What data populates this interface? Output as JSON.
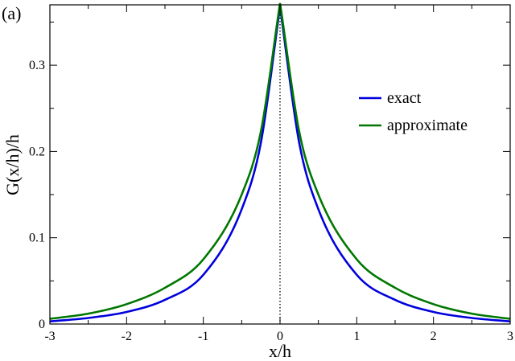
{
  "panel_label": "(a)",
  "chart_data": {
    "type": "line",
    "title": "",
    "xlabel": "x/h",
    "ylabel": "G(x/h)/h",
    "xlim": [
      -3,
      3
    ],
    "ylim": [
      0,
      0.37
    ],
    "x_ticks": [
      -3,
      -2,
      -1,
      0,
      1,
      2,
      3
    ],
    "x_tick_labels": [
      "-3",
      "-2",
      "-1",
      "0",
      "1",
      "2",
      "3"
    ],
    "y_ticks": [
      0,
      0.1,
      0.2,
      0.3
    ],
    "y_tick_labels": [
      "0",
      "0.1",
      "0.2",
      "0.3"
    ],
    "grid": false,
    "legend_position": "top-right",
    "reference_line": {
      "x": 0,
      "style": "dotted",
      "color": "#000000"
    },
    "x": [
      -3,
      -2.5,
      -2,
      -1.5,
      -1,
      -0.5,
      -0.25,
      0,
      0.25,
      0.5,
      1,
      1.5,
      2,
      2.5,
      3
    ],
    "series": [
      {
        "name": "exact",
        "color": "#0000dd",
        "values": [
          0.003,
          0.007,
          0.014,
          0.028,
          0.057,
          0.133,
          0.21,
          0.368,
          0.21,
          0.133,
          0.057,
          0.028,
          0.014,
          0.007,
          0.003
        ]
      },
      {
        "name": "approximate",
        "color": "#007700",
        "values": [
          0.006,
          0.012,
          0.023,
          0.042,
          0.075,
          0.15,
          0.223,
          0.372,
          0.223,
          0.15,
          0.075,
          0.042,
          0.023,
          0.012,
          0.006
        ]
      }
    ]
  }
}
